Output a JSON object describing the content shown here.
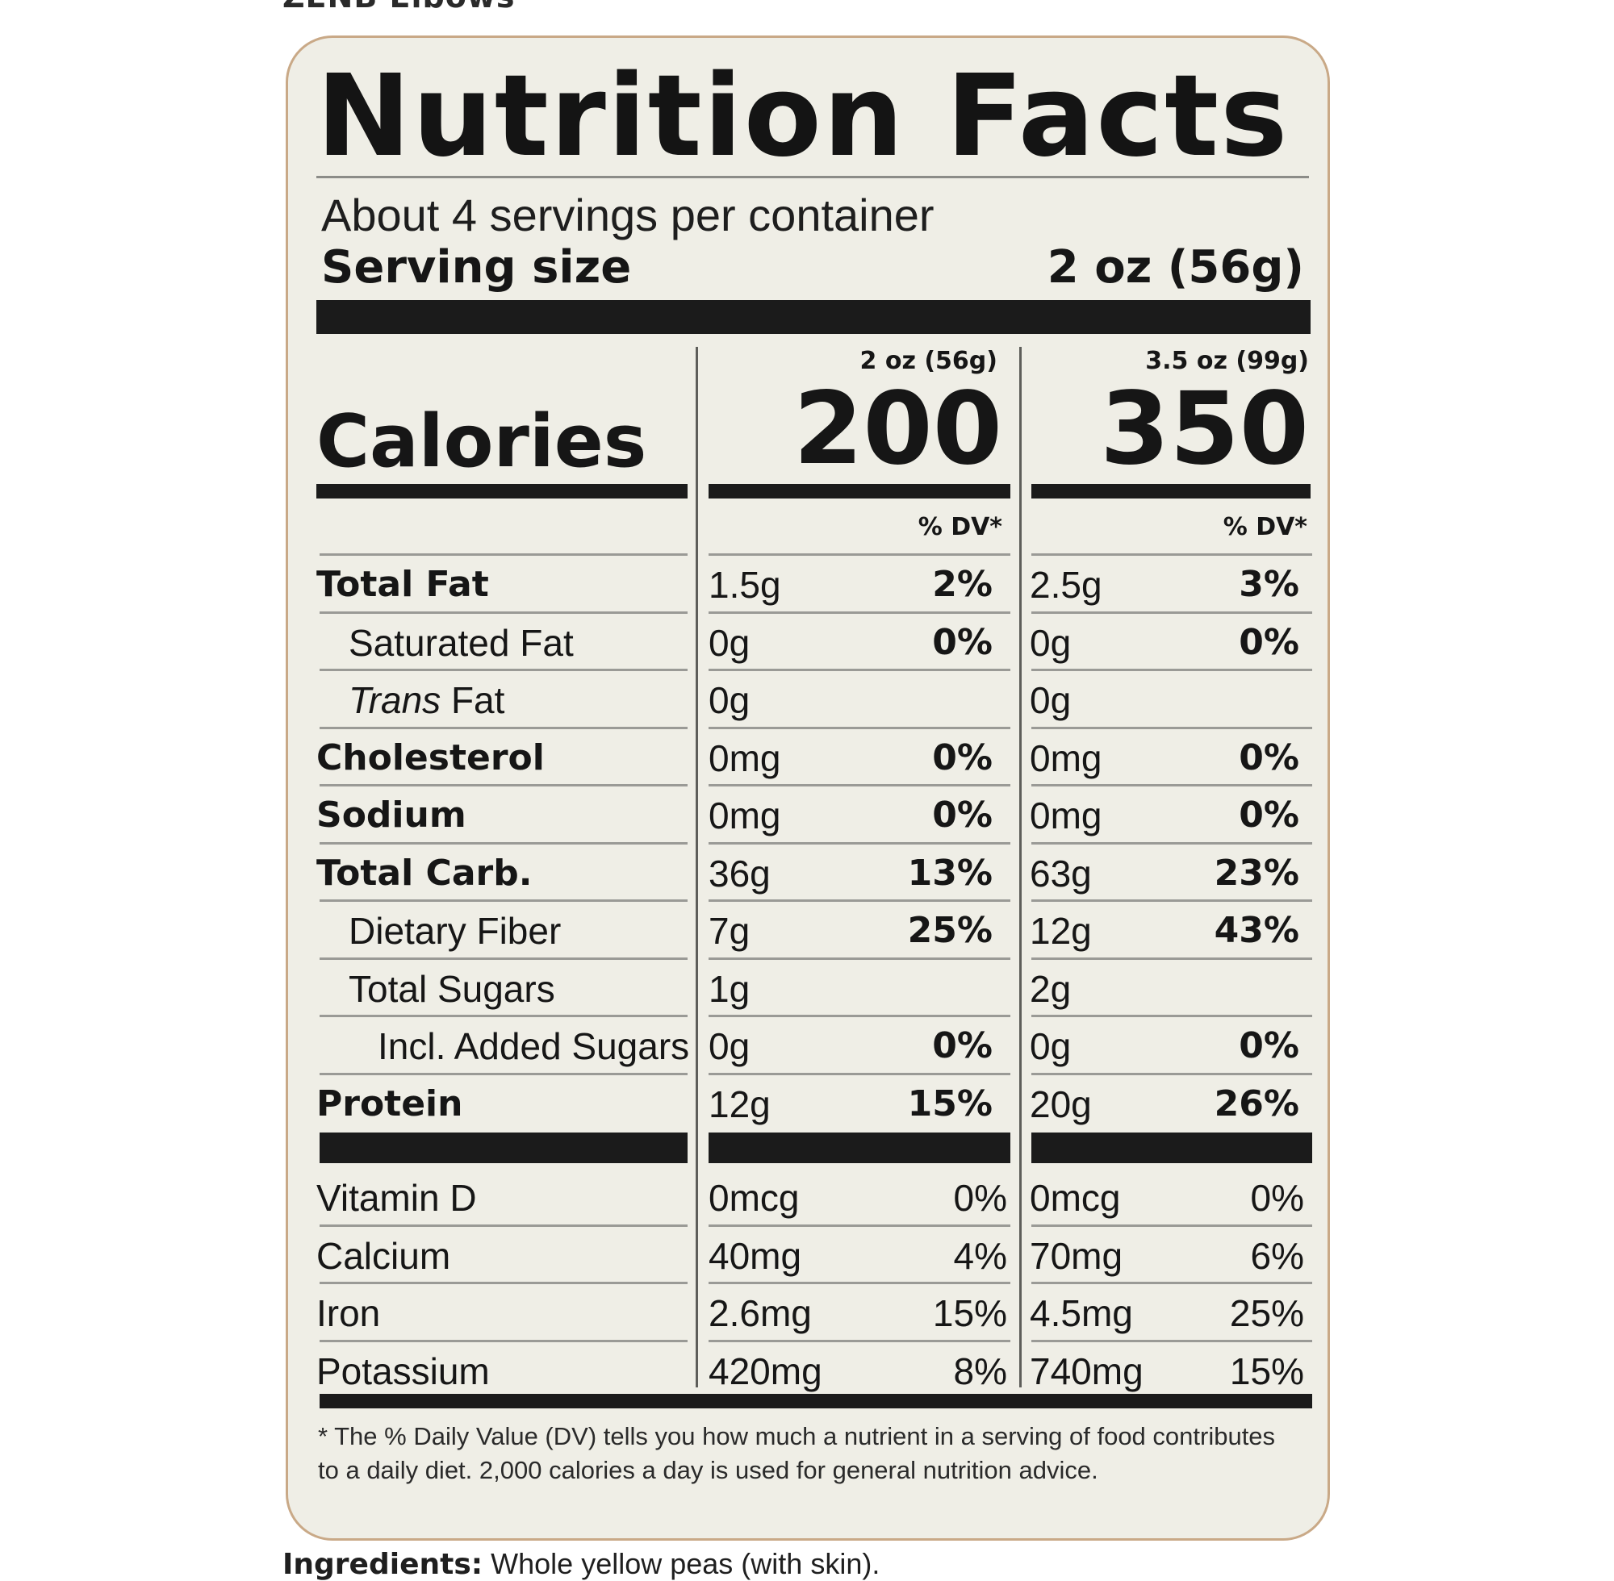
{
  "header_cut": "ZENB Elbows",
  "label": {
    "title": "Nutrition Facts",
    "servings_per_container": "About 4 servings per container",
    "serving_size_label": "Serving size",
    "serving_size_value": "2 oz (56g)",
    "columns": [
      {
        "header": "2 oz (56g)",
        "calories": "200",
        "dv_header": "% DV*"
      },
      {
        "header": "3.5 oz (99g)",
        "calories": "350",
        "dv_header": "% DV*"
      }
    ],
    "calories_label": "Calories",
    "rows": [
      {
        "name": "Total Fat",
        "a1": "1.5g",
        "p1": "2%",
        "a2": "2.5g",
        "p2": "3%"
      },
      {
        "name": "Saturated Fat",
        "a1": "0g",
        "p1": "0%",
        "a2": "0g",
        "p2": "0%"
      },
      {
        "name_italic": "Trans",
        "name_rest": " Fat",
        "a1": "0g",
        "p1": "",
        "a2": "0g",
        "p2": ""
      },
      {
        "name": "Cholesterol",
        "a1": "0mg",
        "p1": "0%",
        "a2": "0mg",
        "p2": "0%"
      },
      {
        "name": "Sodium",
        "a1": "0mg",
        "p1": "0%",
        "a2": "0mg",
        "p2": "0%"
      },
      {
        "name": "Total Carb.",
        "a1": "36g",
        "p1": "13%",
        "a2": "63g",
        "p2": "23%"
      },
      {
        "name": "Dietary Fiber",
        "a1": "7g",
        "p1": "25%",
        "a2": "12g",
        "p2": "43%"
      },
      {
        "name": "Total Sugars",
        "a1": "1g",
        "p1": "",
        "a2": "2g",
        "p2": ""
      },
      {
        "name": "Incl. Added Sugars",
        "a1": "0g",
        "p1": "0%",
        "a2": "0g",
        "p2": "0%"
      },
      {
        "name": "Protein",
        "a1": "12g",
        "p1": "15%",
        "a2": "20g",
        "p2": "26%"
      }
    ],
    "micros": [
      {
        "name": "Vitamin D",
        "a1": "0mcg",
        "p1": "0%",
        "a2": "0mcg",
        "p2": "0%"
      },
      {
        "name": "Calcium",
        "a1": "40mg",
        "p1": "4%",
        "a2": "70mg",
        "p2": "6%"
      },
      {
        "name": "Iron",
        "a1": "2.6mg",
        "p1": "15%",
        "a2": "4.5mg",
        "p2": "25%"
      },
      {
        "name": "Potassium",
        "a1": "420mg",
        "p1": "8%",
        "a2": "740mg",
        "p2": "15%"
      }
    ],
    "footnote": "* The % Daily Value (DV) tells you how much a nutrient in a serving of food contributes to a daily diet. 2,000 calories a day is used for general nutrition advice."
  },
  "ingredients": {
    "label": "Ingredients:",
    "text": " Whole yellow peas (with skin)."
  }
}
